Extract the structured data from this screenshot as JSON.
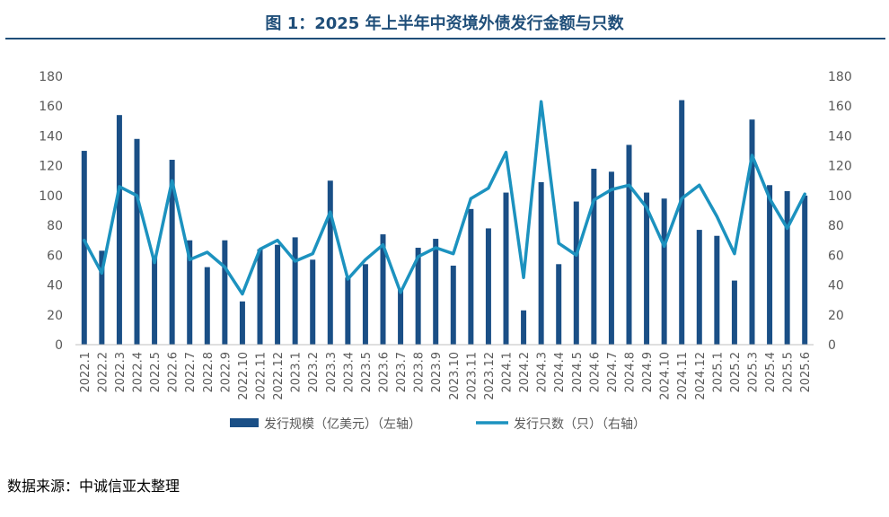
{
  "title": "图 1：2025 年上半年中资境外债发行金额与只数",
  "source": "数据来源：中诚信亚太整理",
  "colors": {
    "bar": "#1a4f86",
    "line": "#1c92bf",
    "title": "#1f4e79",
    "axis": "#595959"
  },
  "chart_data": {
    "type": "bar+line",
    "categories": [
      "2022.1",
      "2022.2",
      "2022.3",
      "2022.4",
      "2022.5",
      "2022.6",
      "2022.7",
      "2022.8",
      "2022.9",
      "2022.10",
      "2022.11",
      "2022.12",
      "2023.1",
      "2023.2",
      "2023.3",
      "2023.4",
      "2023.5",
      "2023.6",
      "2023.7",
      "2023.8",
      "2023.9",
      "2023.10",
      "2023.11",
      "2023.12",
      "2024.1",
      "2024.2",
      "2024.3",
      "2024.4",
      "2024.5",
      "2024.6",
      "2024.7",
      "2024.8",
      "2024.9",
      "2024.10",
      "2024.11",
      "2024.12",
      "2025.1",
      "2025.2",
      "2025.3",
      "2025.4",
      "2025.5",
      "2025.6"
    ],
    "series": [
      {
        "name": "发行规模（亿美元）（左轴）",
        "type": "bar",
        "axis": "left",
        "values": [
          130,
          63,
          154,
          138,
          59,
          124,
          70,
          52,
          70,
          29,
          64,
          67,
          72,
          57,
          110,
          45,
          54,
          74,
          37,
          65,
          71,
          53,
          91,
          78,
          102,
          23,
          109,
          54,
          96,
          118,
          116,
          134,
          102,
          98,
          164,
          77,
          73,
          43,
          151,
          107,
          103,
          100
        ]
      },
      {
        "name": "发行只数（只）（右轴）",
        "type": "line",
        "axis": "right",
        "values": [
          70,
          48,
          106,
          100,
          55,
          110,
          57,
          62,
          52,
          34,
          64,
          70,
          56,
          61,
          89,
          44,
          57,
          67,
          35,
          59,
          65,
          61,
          98,
          105,
          129,
          45,
          163,
          68,
          60,
          97,
          104,
          107,
          92,
          66,
          98,
          107,
          86,
          61,
          127,
          98,
          78,
          101
        ]
      }
    ],
    "ylim_left": [
      0,
      180
    ],
    "ylim_right": [
      0,
      180
    ],
    "yticks": [
      0,
      20,
      40,
      60,
      80,
      100,
      120,
      140,
      160,
      180
    ],
    "grid": false,
    "legend": "bottom"
  }
}
